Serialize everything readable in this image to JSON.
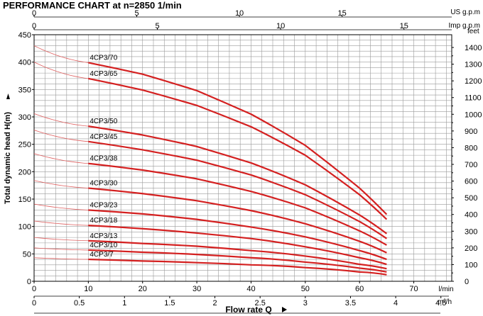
{
  "chart_data": {
    "type": "line",
    "title": "PERFORMANCE CHART at n=2850 1/min",
    "xlabel": "Flow rate Q",
    "xunit_main": "l/min",
    "xunit_m3h": "m³/h",
    "ylabel": "Total dynamic head H(m)",
    "y2unit": "feet",
    "x_usgpm_label": "US g.p.m",
    "x_impgpm_label": "Imp g.p.m",
    "xlim": [
      0,
      77
    ],
    "ylim": [
      0,
      450
    ],
    "grid": true,
    "x_ticks": [
      0,
      10,
      20,
      30,
      40,
      50,
      60,
      70
    ],
    "y_ticks": [
      0,
      50,
      100,
      150,
      200,
      250,
      300,
      350,
      400,
      450
    ],
    "m3h_ticks": [
      0,
      0.5,
      1,
      1.5,
      2,
      2.5,
      3,
      3.5,
      4,
      4.5
    ],
    "usgpm_ticks": [
      0,
      5,
      10,
      15
    ],
    "impgpm_ticks": [
      0,
      5,
      10,
      15
    ],
    "feet_ticks": [
      0,
      100,
      200,
      300,
      400,
      500,
      600,
      700,
      800,
      900,
      1000,
      1100,
      1200,
      1300,
      1400
    ],
    "series": [
      {
        "name": "4CP3/70",
        "shutoff": 430,
        "x": [
          10,
          20,
          30,
          40,
          50,
          60,
          65
        ],
        "y": [
          399,
          378,
          348,
          305,
          248,
          170,
          122
        ]
      },
      {
        "name": "4CP3/65",
        "shutoff": 400,
        "x": [
          10,
          20,
          30,
          40,
          50,
          60,
          65
        ],
        "y": [
          370,
          349,
          321,
          282,
          230,
          158,
          113
        ]
      },
      {
        "name": "4CP3/50",
        "shutoff": 306,
        "x": [
          10,
          20,
          30,
          40,
          50,
          60,
          65
        ],
        "y": [
          283,
          267,
          246,
          216,
          176,
          121,
          87
        ]
      },
      {
        "name": "4CP3/45",
        "shutoff": 276,
        "x": [
          10,
          20,
          30,
          40,
          50,
          60,
          65
        ],
        "y": [
          255,
          240,
          221,
          194,
          158,
          109,
          78
        ]
      },
      {
        "name": "4CP3/38",
        "shutoff": 233,
        "x": [
          10,
          20,
          30,
          40,
          50,
          60,
          65
        ],
        "y": [
          215,
          203,
          187,
          164,
          134,
          92,
          66
        ]
      },
      {
        "name": "4CP3/30",
        "shutoff": 184,
        "x": [
          10,
          20,
          30,
          40,
          50,
          60,
          65
        ],
        "y": [
          170,
          160,
          147,
          129,
          105,
          73,
          52
        ]
      },
      {
        "name": "4CP3/23",
        "shutoff": 141,
        "x": [
          10,
          20,
          30,
          40,
          50,
          60,
          65
        ],
        "y": [
          130,
          123,
          113,
          99,
          81,
          56,
          40
        ]
      },
      {
        "name": "4CP3/18",
        "shutoff": 110,
        "x": [
          10,
          20,
          30,
          40,
          50,
          60,
          65
        ],
        "y": [
          102,
          96,
          88,
          78,
          63,
          43,
          31
        ]
      },
      {
        "name": "4CP3/13",
        "shutoff": 80,
        "x": [
          10,
          20,
          30,
          40,
          50,
          60,
          65
        ],
        "y": [
          74,
          69,
          64,
          56,
          46,
          31,
          23
        ]
      },
      {
        "name": "4CP3/10",
        "shutoff": 61,
        "x": [
          10,
          20,
          30,
          40,
          50,
          60,
          65
        ],
        "y": [
          57,
          53,
          49,
          43,
          35,
          24,
          17
        ]
      },
      {
        "name": "4CP3/7",
        "shutoff": 43,
        "x": [
          10,
          20,
          30,
          40,
          50,
          60,
          65
        ],
        "y": [
          40,
          37,
          34,
          30,
          25,
          17,
          12
        ]
      }
    ],
    "colors": {
      "curve": "#d42020",
      "thin": "#e06060",
      "grid": "#9a9a9a",
      "axis": "#000000"
    }
  }
}
